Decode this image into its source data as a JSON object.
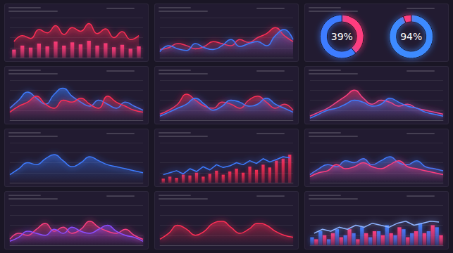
{
  "chart_data": [
    {
      "type": "combo",
      "categories": [
        null,
        null,
        null,
        null,
        null,
        null,
        null,
        null,
        null,
        null,
        null,
        null,
        null,
        null,
        null,
        null
      ],
      "ylim": [
        0,
        100
      ],
      "yticks": [
        0,
        25,
        50,
        75,
        100
      ],
      "grid": true,
      "tick_labels": false,
      "series": [
        {
          "type": "bar",
          "color": "#ff3d7f",
          "values": [
            20,
            30,
            25,
            35,
            28,
            40,
            30,
            38,
            33,
            42,
            30,
            36,
            26,
            32,
            22,
            28
          ]
        },
        {
          "type": "area",
          "color": "#ff2d55",
          "values": [
            40,
            55,
            48,
            70,
            62,
            80,
            58,
            75,
            66,
            85,
            60,
            72,
            50,
            65,
            45,
            55
          ]
        }
      ]
    },
    {
      "type": "area",
      "categories": [
        null,
        null,
        null,
        null,
        null,
        null,
        null,
        null,
        null,
        null,
        null,
        null,
        null,
        null,
        null,
        null
      ],
      "ylim": [
        0,
        100
      ],
      "yticks": [
        0,
        25,
        50,
        75,
        100
      ],
      "grid": true,
      "tick_labels": false,
      "series": [
        {
          "color": "#ff2d55",
          "values": [
            20,
            25,
            35,
            30,
            22,
            28,
            40,
            35,
            30,
            45,
            38,
            50,
            60,
            75,
            55,
            40
          ]
        },
        {
          "color": "#3d7bff",
          "values": [
            15,
            30,
            22,
            18,
            35,
            25,
            20,
            30,
            45,
            28,
            35,
            40,
            30,
            55,
            70,
            45
          ]
        }
      ]
    },
    {
      "type": "pie",
      "values": [
        39,
        61
      ],
      "value_labels": [
        "39%",
        null
      ],
      "colors": [
        "#ff3d7f",
        "#3d7bff"
      ]
    },
    {
      "type": "pie",
      "values": [
        94,
        6
      ],
      "value_labels": [
        "94%",
        null
      ],
      "colors": [
        "#3d8bff",
        "#ff3d7f"
      ]
    },
    {
      "type": "area",
      "categories": [
        null,
        null,
        null,
        null,
        null,
        null,
        null,
        null,
        null,
        null,
        null,
        null,
        null,
        null,
        null,
        null
      ],
      "ylim": [
        0,
        100
      ],
      "yticks": [
        0,
        25,
        50,
        75,
        100
      ],
      "grid": true,
      "tick_labels": false,
      "series": [
        {
          "color": "#3d7bff",
          "values": [
            30,
            50,
            70,
            55,
            40,
            65,
            80,
            60,
            45,
            35,
            50,
            40,
            30,
            45,
            35,
            25
          ]
        },
        {
          "color": "#ff2d55",
          "values": [
            20,
            35,
            45,
            60,
            40,
            30,
            50,
            45,
            55,
            40,
            30,
            60,
            45,
            35,
            25,
            20
          ]
        }
      ]
    },
    {
      "type": "area",
      "categories": [
        null,
        null,
        null,
        null,
        null,
        null,
        null,
        null,
        null,
        null,
        null,
        null,
        null,
        null,
        null,
        null
      ],
      "ylim": [
        0,
        100
      ],
      "yticks": [
        0,
        25,
        50,
        75,
        100
      ],
      "grid": true,
      "tick_labels": false,
      "series": [
        {
          "color": "#ff2d55",
          "values": [
            15,
            25,
            40,
            65,
            50,
            35,
            30,
            45,
            40,
            30,
            50,
            60,
            45,
            30,
            40,
            25
          ]
        },
        {
          "color": "#3d7bff",
          "values": [
            10,
            20,
            30,
            40,
            55,
            40,
            25,
            35,
            50,
            45,
            35,
            40,
            55,
            40,
            30,
            20
          ]
        }
      ]
    },
    {
      "type": "area",
      "categories": [
        null,
        null,
        null,
        null,
        null,
        null,
        null,
        null,
        null,
        null,
        null,
        null,
        null,
        null,
        null,
        null
      ],
      "ylim": [
        0,
        100
      ],
      "yticks": [
        0,
        25,
        50,
        75,
        100
      ],
      "grid": true,
      "tick_labels": false,
      "series": [
        {
          "color": "#ff3d7f",
          "values": [
            10,
            20,
            30,
            45,
            60,
            75,
            55,
            40,
            50,
            45,
            35,
            40,
            30,
            25,
            20,
            15
          ]
        },
        {
          "color": "#3d7bff",
          "values": [
            5,
            15,
            25,
            30,
            40,
            50,
            45,
            35,
            40,
            55,
            45,
            35,
            30,
            20,
            15,
            10
          ]
        }
      ]
    },
    {
      "type": "area",
      "categories": [
        null,
        null,
        null,
        null,
        null,
        null,
        null,
        null,
        null,
        null,
        null,
        null,
        null,
        null,
        null,
        null
      ],
      "ylim": [
        0,
        100
      ],
      "yticks": [
        0,
        25,
        50,
        75,
        100
      ],
      "grid": true,
      "tick_labels": false,
      "series": [
        {
          "color": "#3d7bff",
          "values": [
            20,
            35,
            50,
            45,
            60,
            70,
            55,
            40,
            50,
            65,
            55,
            45,
            40,
            35,
            30,
            25
          ]
        }
      ]
    },
    {
      "type": "combo",
      "categories": [
        null,
        null,
        null,
        null,
        null,
        null,
        null,
        null,
        null,
        null,
        null,
        null,
        null,
        null,
        null,
        null,
        null,
        null,
        null,
        null
      ],
      "ylim": [
        0,
        100
      ],
      "yticks": [
        0,
        25,
        50,
        75,
        100
      ],
      "grid": true,
      "tick_labels": false,
      "series": [
        {
          "type": "bar",
          "color": "#ff2d55",
          "values": [
            10,
            15,
            12,
            20,
            18,
            25,
            15,
            22,
            30,
            20,
            28,
            35,
            25,
            40,
            32,
            45,
            38,
            55,
            60,
            70
          ]
        },
        {
          "type": "line",
          "color": "#3d7bff",
          "values": [
            20,
            25,
            30,
            22,
            35,
            28,
            40,
            32,
            45,
            38,
            42,
            50,
            45,
            55,
            48,
            60,
            52,
            58,
            65,
            62
          ]
        }
      ]
    },
    {
      "type": "area",
      "categories": [
        null,
        null,
        null,
        null,
        null,
        null,
        null,
        null,
        null,
        null,
        null,
        null,
        null,
        null,
        null,
        null
      ],
      "ylim": [
        0,
        100
      ],
      "yticks": [
        0,
        25,
        50,
        75,
        100
      ],
      "grid": true,
      "tick_labels": false,
      "series": [
        {
          "color": "#3d7bff",
          "values": [
            20,
            35,
            45,
            40,
            55,
            50,
            60,
            45,
            55,
            65,
            50,
            45,
            55,
            40,
            35,
            30
          ]
        },
        {
          "color": "#ff3d7f",
          "values": [
            15,
            25,
            30,
            45,
            35,
            40,
            50,
            40,
            35,
            45,
            55,
            40,
            35,
            30,
            25,
            20
          ]
        }
      ]
    },
    {
      "type": "area",
      "categories": [
        null,
        null,
        null,
        null,
        null,
        null,
        null,
        null,
        null,
        null,
        null,
        null,
        null,
        null,
        null,
        null
      ],
      "ylim": [
        0,
        100
      ],
      "yticks": [
        0,
        25,
        50,
        75,
        100
      ],
      "grid": true,
      "tick_labels": false,
      "series": [
        {
          "color": "#ff3d7f",
          "values": [
            15,
            30,
            25,
            40,
            55,
            35,
            45,
            30,
            40,
            60,
            45,
            35,
            30,
            40,
            25,
            15
          ]
        },
        {
          "color": "#8b4dff",
          "values": [
            10,
            20,
            35,
            30,
            25,
            40,
            30,
            45,
            35,
            30,
            40,
            50,
            35,
            25,
            20,
            10
          ]
        }
      ]
    },
    {
      "type": "area",
      "categories": [
        null,
        null,
        null,
        null,
        null,
        null,
        null,
        null,
        null,
        null,
        null,
        null,
        null,
        null,
        null,
        null
      ],
      "ylim": [
        0,
        100
      ],
      "yticks": [
        0,
        25,
        50,
        75,
        100
      ],
      "grid": true,
      "tick_labels": false,
      "series": [
        {
          "color": "#ff2d55",
          "values": [
            15,
            30,
            50,
            40,
            25,
            35,
            55,
            60,
            45,
            30,
            40,
            55,
            50,
            35,
            25,
            20
          ]
        }
      ]
    },
    {
      "type": "combo",
      "categories": [
        null,
        null,
        null,
        null,
        null,
        null,
        null,
        null,
        null,
        null,
        null,
        null,
        null,
        null,
        null,
        null
      ],
      "ylim": [
        0,
        100
      ],
      "yticks": [
        0,
        25,
        50,
        75,
        100
      ],
      "grid": true,
      "tick_labels": false,
      "series": [
        {
          "type": "bar",
          "color": "#3d7bff",
          "values": [
            20,
            35,
            15,
            40,
            25,
            30,
            45,
            20,
            35,
            50,
            25,
            40,
            30,
            55,
            35,
            45
          ]
        },
        {
          "type": "bar",
          "color": "#ff3d7f",
          "values": [
            15,
            25,
            30,
            20,
            40,
            15,
            30,
            35,
            25,
            30,
            45,
            20,
            35,
            30,
            50,
            25
          ]
        },
        {
          "type": "line",
          "color": "#8fb4ff",
          "values": [
            30,
            40,
            35,
            45,
            40,
            50,
            45,
            55,
            50,
            45,
            55,
            60,
            50,
            55,
            60,
            58
          ]
        }
      ]
    }
  ]
}
